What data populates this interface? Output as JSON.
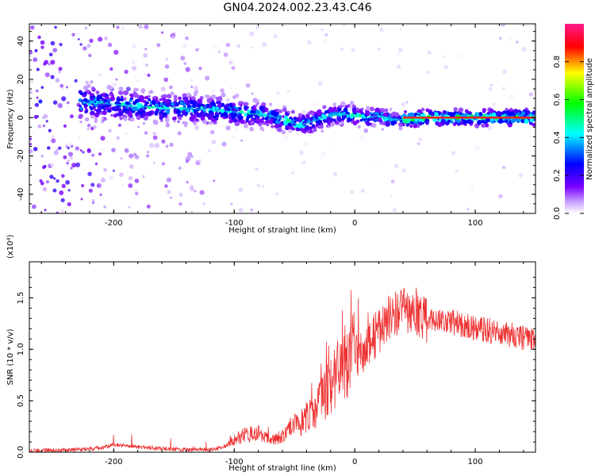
{
  "title": "GN04.2024.002.23.43.C46",
  "chart_data": [
    {
      "type": "heatmap",
      "title": "GN04.2024.002.23.43.C46",
      "xlabel": "Height of straight line (km)",
      "ylabel": "Frequency (Hz)",
      "xlim": [
        -270,
        150
      ],
      "ylim": [
        -50,
        49
      ],
      "xticks": [
        -200,
        -100,
        0,
        100
      ],
      "yticks": [
        -40,
        -20,
        0,
        20,
        40
      ],
      "colorbar": {
        "label": "Normalized spectral amplitude",
        "range": [
          0.0,
          1.0
        ],
        "ticks": [
          0.0,
          0.2,
          0.4,
          0.6,
          0.8
        ],
        "colormap": [
          "#ffffff",
          "#7a00ff",
          "#0000ff",
          "#00ffff",
          "#00ff00",
          "#ffff00",
          "#ff0000",
          "#ff1a8c"
        ]
      },
      "ridge": {
        "x": [
          -225,
          -200,
          -180,
          -160,
          -140,
          -120,
          -100,
          -85,
          -70,
          -60,
          -50,
          -45,
          -40,
          -30,
          -20,
          -10,
          0,
          10,
          20,
          30,
          40,
          50,
          60,
          80,
          100,
          120,
          148
        ],
        "y": [
          8,
          7,
          6,
          5,
          5,
          4,
          3,
          2,
          1,
          -1,
          -3,
          -4,
          -3,
          -1,
          1,
          2,
          1,
          0,
          1,
          -1,
          -1,
          -0.5,
          0,
          0,
          0,
          0,
          0
        ]
      }
    },
    {
      "type": "line",
      "xlabel": "Height of straight line (km)",
      "ylabel": "SNR (10 * v/v)",
      "y_multiplier": "(x10⁴)",
      "xlim": [
        -270,
        150
      ],
      "ylim": [
        0.0,
        1.85
      ],
      "xticks": [
        -200,
        -100,
        0,
        100
      ],
      "yticks": [
        0.0,
        0.5,
        1.0,
        1.5
      ],
      "series": [
        {
          "color": "#ee3333",
          "x": [
            -270,
            -250,
            -230,
            -210,
            -200,
            -190,
            -180,
            -160,
            -140,
            -120,
            -110,
            -100,
            -90,
            -80,
            -70,
            -60,
            -50,
            -40,
            -30,
            -20,
            -10,
            0,
            10,
            20,
            30,
            40,
            50,
            60,
            70,
            80,
            90,
            100,
            110,
            120,
            130,
            140,
            150
          ],
          "y": [
            0.01,
            0.015,
            0.02,
            0.04,
            0.07,
            0.06,
            0.05,
            0.03,
            0.02,
            0.02,
            0.04,
            0.12,
            0.18,
            0.18,
            0.12,
            0.15,
            0.25,
            0.32,
            0.45,
            0.65,
            0.85,
            0.95,
            1.05,
            1.2,
            1.35,
            1.4,
            1.35,
            1.3,
            1.3,
            1.28,
            1.25,
            1.22,
            1.2,
            1.18,
            1.15,
            1.12,
            1.1
          ]
        }
      ]
    }
  ]
}
